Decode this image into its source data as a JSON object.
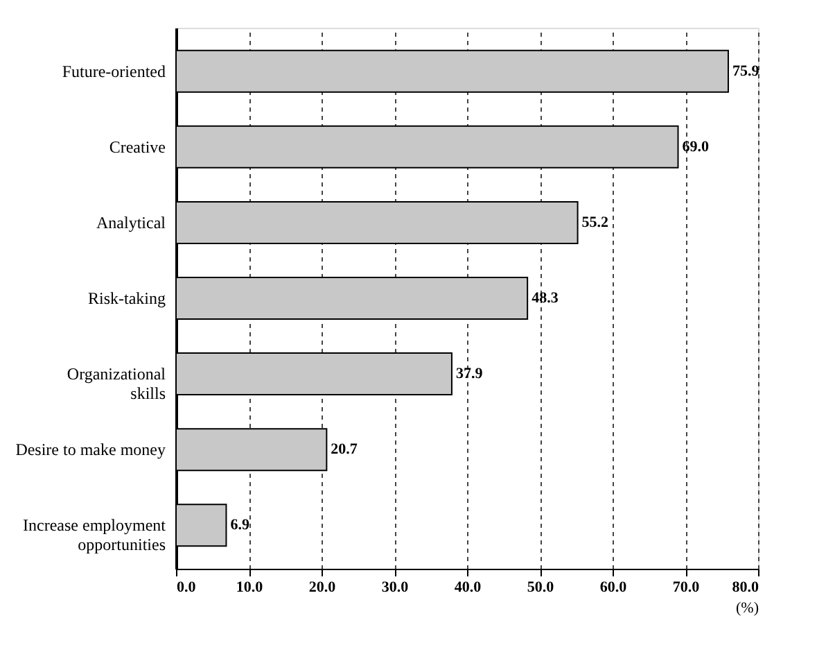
{
  "chart_data": {
    "type": "bar",
    "orientation": "horizontal",
    "categories": [
      "Future-oriented",
      "Creative",
      "Analytical",
      "Risk-taking",
      "Organizational skills",
      "Desire to make money",
      "Increase employment opportunities"
    ],
    "values": [
      75.9,
      69.0,
      55.2,
      48.3,
      37.9,
      20.7,
      6.9
    ],
    "value_labels": [
      "75.9",
      "69.0",
      "55.2",
      "48.3",
      "37.9",
      "20.7",
      "6.9"
    ],
    "color": "#c8c8c8",
    "xlabel": "(%)",
    "xlim": [
      0,
      80
    ],
    "xticks": [
      {
        "value": 0,
        "label": "0.0"
      },
      {
        "value": 10,
        "label": "10.0"
      },
      {
        "value": 20,
        "label": "20.0"
      },
      {
        "value": 30,
        "label": "30.0"
      },
      {
        "value": 40,
        "label": "40.0"
      },
      {
        "value": 50,
        "label": "50.0"
      },
      {
        "value": 60,
        "label": "60.0"
      },
      {
        "value": 70,
        "label": "70.0"
      },
      {
        "value": 80,
        "label": "80.0"
      }
    ],
    "grid": "x"
  }
}
